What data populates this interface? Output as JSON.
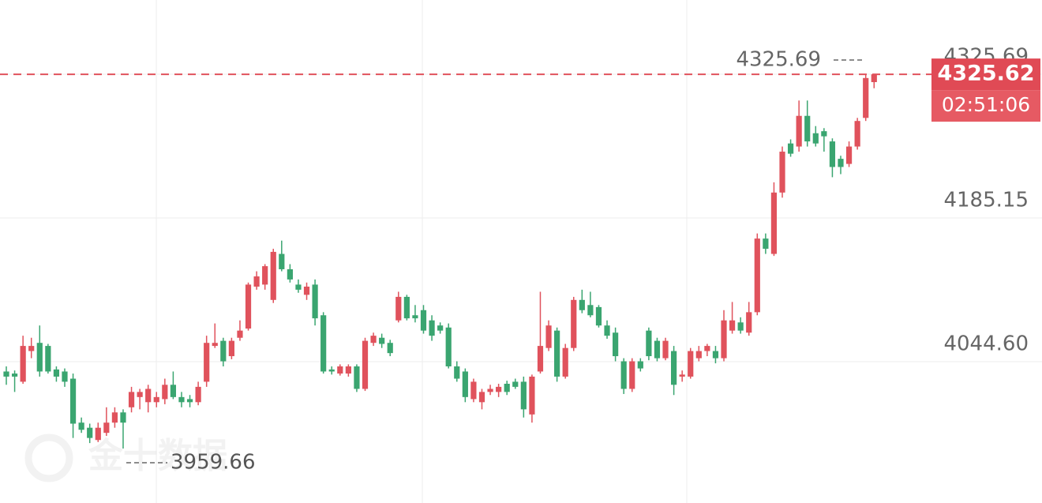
{
  "chart_data": {
    "type": "candlestick",
    "ylim": [
      3906.4,
      4398.3
    ],
    "yticks": [
      {
        "value": 4044.6,
        "label": "4044.60"
      },
      4185.15,
      4325.69
    ],
    "grid": true,
    "up_color": "#e0525c",
    "down_color": "#3aa570",
    "open": [
      4035,
      4033,
      4025,
      4055,
      4063,
      4060,
      4037,
      4035,
      4028,
      3985,
      3980,
      3968,
      3975,
      3985,
      3995,
      4000,
      4010,
      4005,
      4005,
      4008,
      4022,
      4010,
      4008,
      4005,
      4025,
      4060,
      4065,
      4050,
      4068,
      4077,
      4118,
      4120,
      4105,
      4150,
      4135,
      4120,
      4110,
      4120,
      4090,
      4037,
      4033,
      4033,
      4040,
      4018,
      4063,
      4068,
      4063,
      4085,
      4108,
      4090,
      4095,
      4085,
      4080,
      4078,
      4040,
      4035,
      4008,
      4005,
      4015,
      4015,
      4023,
      4025,
      4025,
      3993,
      4035,
      4058,
      4075,
      4030,
      4058,
      4105,
      4100,
      4098,
      4080,
      4073,
      4045,
      4018,
      4045,
      4075,
      4065,
      4048,
      4055,
      4030,
      4030,
      4048,
      4055,
      4055,
      4048,
      4075,
      4083,
      4073,
      4093,
      4165,
      4150,
      4210,
      4258,
      4255,
      4285,
      4268,
      4270,
      4260,
      4243,
      4238,
      4255,
      4283,
      4318
    ],
    "high": [
      4040,
      4036,
      4070,
      4068,
      4080,
      4062,
      4040,
      4038,
      4033,
      3990,
      3984,
      3985,
      4000,
      4000,
      3998,
      4020,
      4018,
      4022,
      4015,
      4028,
      4035,
      4015,
      4012,
      4025,
      4070,
      4082,
      4068,
      4068,
      4085,
      4122,
      4133,
      4140,
      4155,
      4163,
      4140,
      4125,
      4122,
      4125,
      4093,
      4040,
      4042,
      4042,
      4042,
      4068,
      4073,
      4072,
      4066,
      4113,
      4110,
      4100,
      4100,
      4090,
      4083,
      4082,
      4045,
      4038,
      4028,
      4018,
      4022,
      4023,
      4026,
      4028,
      4030,
      4032,
      4113,
      4085,
      4078,
      4062,
      4108,
      4115,
      4113,
      4100,
      4085,
      4078,
      4048,
      4048,
      4048,
      4078,
      4068,
      4068,
      4060,
      4036,
      4058,
      4060,
      4062,
      4060,
      4095,
      4103,
      4088,
      4103,
      4170,
      4170,
      4220,
      4255,
      4262,
      4300,
      4300,
      4275,
      4273,
      4263,
      4246,
      4260,
      4283,
      4325.69,
      4325.62
    ],
    "low": [
      4022,
      4015,
      4023,
      4048,
      4030,
      4033,
      4025,
      4020,
      3970,
      3975,
      3965,
      3966,
      3972,
      3980,
      3959.66,
      3995,
      3998,
      3995,
      4000,
      4003,
      4008,
      4000,
      4000,
      4002,
      4020,
      4058,
      4040,
      4047,
      4065,
      4075,
      4115,
      4115,
      4102,
      4133,
      4122,
      4112,
      4105,
      4080,
      4033,
      4032,
      4031,
      4030,
      4015,
      4016,
      4060,
      4058,
      4050,
      4083,
      4085,
      4083,
      4072,
      4065,
      4072,
      4038,
      4025,
      4005,
      4005,
      3998,
      4012,
      4010,
      4012,
      4018,
      3990,
      3985,
      4033,
      4055,
      4025,
      4028,
      4055,
      4092,
      4088,
      4078,
      4067,
      4045,
      4013,
      4015,
      4035,
      4046,
      4045,
      4046,
      4012,
      4025,
      4028,
      4045,
      4050,
      4043,
      4045,
      4072,
      4072,
      4070,
      4090,
      4150,
      4148,
      4205,
      4245,
      4250,
      4255,
      4255,
      4250,
      4225,
      4228,
      4235,
      4252,
      4280,
      4312
    ],
    "close": [
      4030,
      4030,
      4060,
      4060,
      4035,
      4035,
      4030,
      4025,
      3984,
      3978,
      3970,
      3980,
      3985,
      3995,
      3985,
      4015,
      4015,
      4018,
      4010,
      4022,
      4010,
      4005,
      4005,
      4020,
      4063,
      4063,
      4045,
      4065,
      4075,
      4120,
      4128,
      4138,
      4152,
      4135,
      4125,
      4115,
      4118,
      4087,
      4035,
      4035,
      4040,
      4040,
      4018,
      4065,
      4070,
      4062,
      4053,
      4108,
      4087,
      4087,
      4075,
      4070,
      4075,
      4040,
      4028,
      4010,
      4025,
      4015,
      4018,
      4020,
      4015,
      4020,
      3998,
      4030,
      4060,
      4080,
      4030,
      4058,
      4105,
      4095,
      4090,
      4080,
      4070,
      4050,
      4018,
      4045,
      4038,
      4050,
      4048,
      4065,
      4022,
      4032,
      4055,
      4055,
      4060,
      4048,
      4085,
      4085,
      4075,
      4093,
      4165,
      4155,
      4210,
      4250,
      4248,
      4285,
      4260,
      4258,
      4265,
      4235,
      4235,
      4255,
      4280,
      4322,
      4325.62
    ],
    "current_price": 4325.62,
    "countdown": "02:51:06",
    "high_label": 4325.69,
    "low_label": 3959.66,
    "watermark": "金十数据"
  }
}
